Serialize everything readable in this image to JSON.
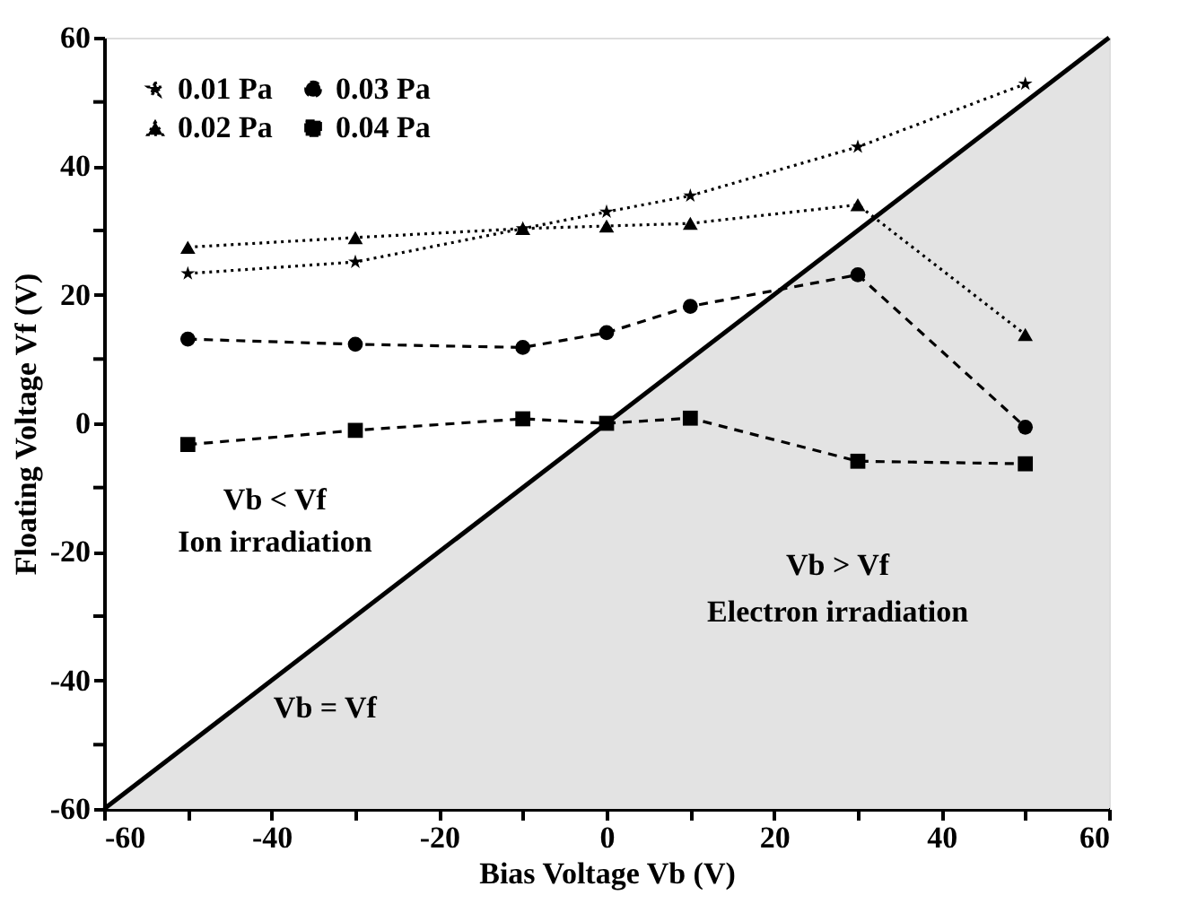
{
  "chart_data": {
    "type": "line",
    "xlabel": "Bias Voltage Vb (V)",
    "ylabel": "Floating Voltage Vf (V)",
    "x": [
      -50,
      -30,
      -10,
      0,
      10,
      30,
      50
    ],
    "xlim": [
      -60,
      60
    ],
    "ylim": [
      -60,
      60
    ],
    "xticks": [
      -60,
      {
        "value": -50,
        "label": null
      },
      -40,
      {
        "value": -30,
        "label": null
      },
      -20,
      {
        "value": -10,
        "label": null
      },
      0,
      {
        "value": 10,
        "label": null
      },
      20,
      {
        "value": 30,
        "label": null
      },
      40,
      {
        "value": 50,
        "label": null
      },
      60
    ],
    "yticks": [
      -60,
      {
        "value": -50,
        "label": null
      },
      -40,
      {
        "value": -30,
        "label": null
      },
      -20,
      {
        "value": -10,
        "label": null
      },
      0,
      {
        "value": 10,
        "label": null
      },
      20,
      {
        "value": 30,
        "label": null
      },
      40,
      {
        "value": 50,
        "label": null
      },
      60
    ],
    "series": [
      {
        "name": "0.01 Pa",
        "color": "#000000",
        "marker": "star",
        "line_style": "dotted",
        "values": [
          23.3,
          25.1,
          30.3,
          32.9,
          35.4,
          43.0,
          52.8
        ]
      },
      {
        "name": "0.03 Pa",
        "color": "#000000",
        "marker": "circle",
        "line_style": "dashed",
        "values": [
          13.1,
          12.3,
          11.8,
          14.1,
          18.2,
          23.1,
          -0.6
        ]
      },
      {
        "name": "0.02 Pa",
        "color": "#000000",
        "marker": "triangle",
        "line_style": "dotted",
        "values": [
          27.4,
          28.9,
          30.3,
          30.7,
          31.1,
          34.0,
          13.8
        ]
      },
      {
        "name": "0.04 Pa",
        "color": "#000000",
        "marker": "square",
        "line_style": "dashed",
        "values": [
          -3.3,
          -1.1,
          0.7,
          0.0,
          0.8,
          -5.9,
          -6.3
        ]
      },
      {
        "type": "area",
        "color": "#e3e3e3",
        "x": [
          -60,
          60
        ],
        "values": [
          -60,
          60
        ]
      }
    ],
    "annotations": [
      "Vb < Vf",
      "Ion irradiation",
      "Vb > Vf",
      "Electron irradiation",
      "Vb = Vf"
    ],
    "legend": "top left",
    "grid": false
  }
}
